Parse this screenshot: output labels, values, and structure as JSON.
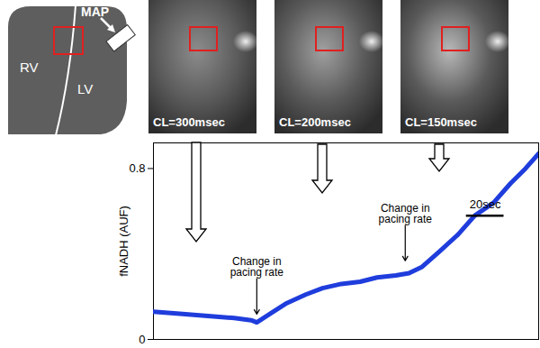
{
  "chart_data": {
    "type": "line",
    "x": [
      0,
      14,
      29,
      43,
      52,
      55,
      62,
      71,
      81,
      90,
      100,
      110,
      119,
      129,
      136,
      143,
      152,
      162,
      171,
      181,
      190,
      198,
      205
    ],
    "values": [
      0.13,
      0.12,
      0.11,
      0.1,
      0.09,
      0.08,
      0.12,
      0.17,
      0.21,
      0.24,
      0.26,
      0.27,
      0.29,
      0.3,
      0.31,
      0.34,
      0.41,
      0.49,
      0.58,
      0.64,
      0.73,
      0.8,
      0.87
    ],
    "color": "#1f3ddc",
    "y_label": "fNADH (AUF)",
    "xlim": [
      0,
      205
    ],
    "ylim": [
      0,
      0.92
    ],
    "yticks": [
      0,
      0.8
    ],
    "tick_labels": "y",
    "annotations": [
      {
        "text": "Change in\npacing rate",
        "x": 55,
        "y": 0.11
      },
      {
        "text": "Change in\npacing rate",
        "x": 134,
        "y": 0.36
      }
    ],
    "scale_bar": {
      "value": 20,
      "label": "20sec"
    }
  },
  "schematic": {
    "labels": [
      "RV",
      "LV",
      "MAP"
    ]
  },
  "images": [
    {
      "label": "CL=300msec"
    },
    {
      "label": "CL=200msec"
    },
    {
      "label": "CL=150msec"
    }
  ]
}
